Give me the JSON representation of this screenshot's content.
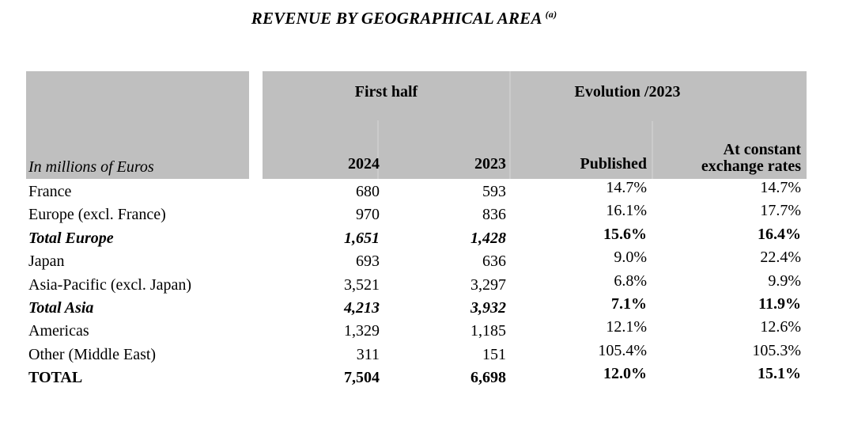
{
  "title": {
    "text": "REVENUE BY GEOGRAPHICAL AREA",
    "footnote_marker": "(a)"
  },
  "table": {
    "corner_label": "In millions of Euros",
    "groups": {
      "first_half": "First half",
      "evolution": "Evolution /2023"
    },
    "columns": {
      "y2024": "2024",
      "y2023": "2023",
      "published": "Published",
      "constant": "At constant exchange rates"
    },
    "rows": [
      {
        "label": "France",
        "fh_2024": "680",
        "fh_2023": "593",
        "published": "14.7%",
        "constant": "14.7%",
        "emphasis": "none"
      },
      {
        "label": "Europe (excl. France)",
        "fh_2024": "970",
        "fh_2023": "836",
        "published": "16.1%",
        "constant": "17.7%",
        "emphasis": "none"
      },
      {
        "label": "Total Europe",
        "fh_2024": "1,651",
        "fh_2023": "1,428",
        "published": "15.6%",
        "constant": "16.4%",
        "emphasis": "subtotal"
      },
      {
        "label": "Japan",
        "fh_2024": "693",
        "fh_2023": "636",
        "published": "9.0%",
        "constant": "22.4%",
        "emphasis": "none"
      },
      {
        "label": "Asia-Pacific (excl. Japan)",
        "fh_2024": "3,521",
        "fh_2023": "3,297",
        "published": "6.8%",
        "constant": "9.9%",
        "emphasis": "none"
      },
      {
        "label": "Total Asia",
        "fh_2024": "4,213",
        "fh_2023": "3,932",
        "published": "7.1%",
        "constant": "11.9%",
        "emphasis": "subtotal"
      },
      {
        "label": "Americas",
        "fh_2024": "1,329",
        "fh_2023": "1,185",
        "published": "12.1%",
        "constant": "12.6%",
        "emphasis": "none"
      },
      {
        "label": "Other (Middle East)",
        "fh_2024": "311",
        "fh_2023": "151",
        "published": "105.4%",
        "constant": "105.3%",
        "emphasis": "none"
      },
      {
        "label": "TOTAL",
        "fh_2024": "7,504",
        "fh_2023": "6,698",
        "published": "12.0%",
        "constant": "15.1%",
        "emphasis": "total"
      }
    ]
  },
  "colors": {
    "background": "#ffffff",
    "header_bg": "#bfbfbf",
    "header_separator": "#cbcbcb",
    "text": "#000000"
  }
}
